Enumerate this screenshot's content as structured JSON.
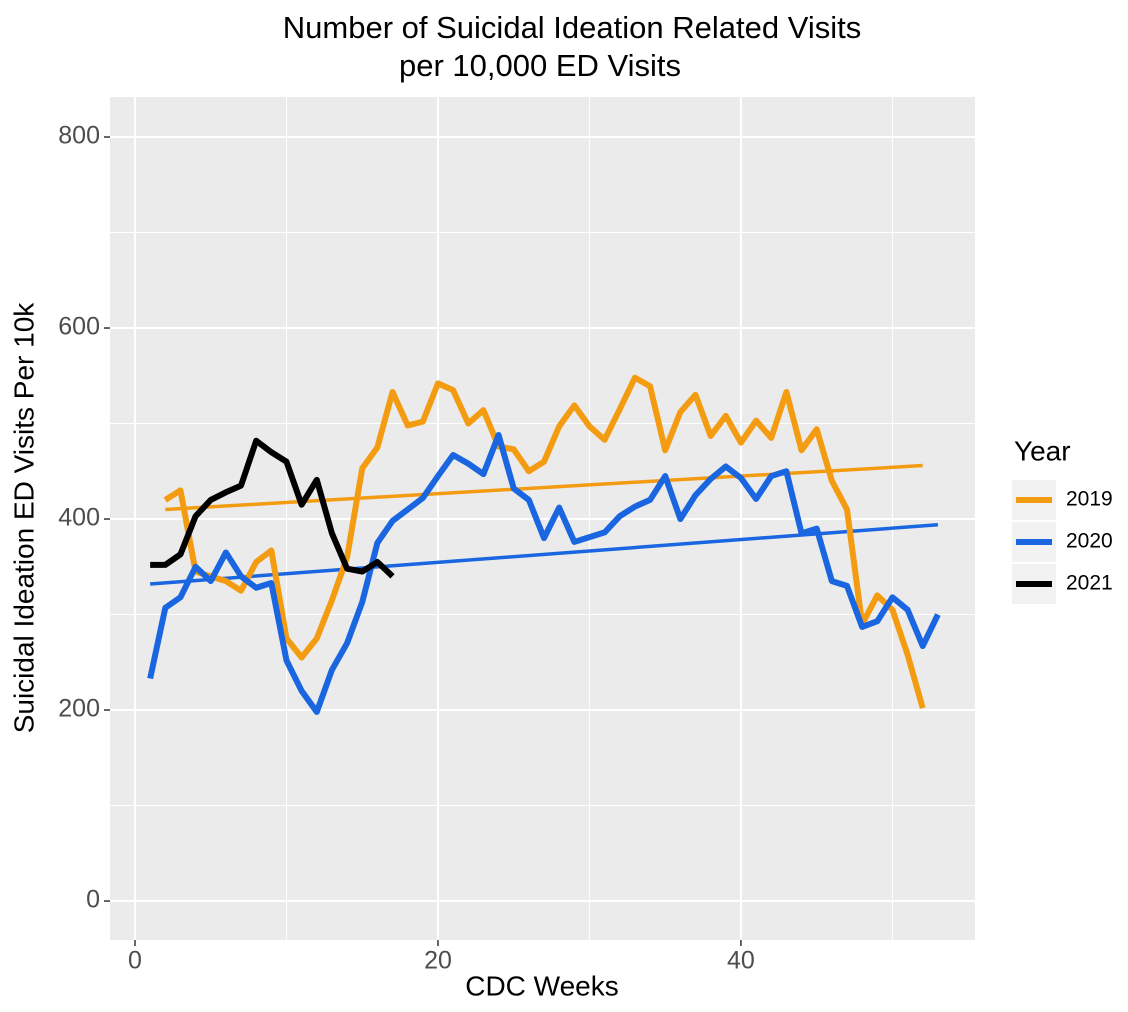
{
  "chart_data": {
    "type": "line",
    "title": [
      "Number of Suicidal Ideation Related Visits",
      "per 10,000 ED Visits"
    ],
    "x_label": "CDC Weeks",
    "y_label": "Suicidal Ideation ED Visits Per 10k",
    "legend_title": "Year",
    "legend": "right",
    "grid": true,
    "xlim": [
      -1.65,
      55.45
    ],
    "ylim": [
      -40.8,
      841.9
    ],
    "xticks": [
      0,
      20,
      40
    ],
    "yticks": [
      0,
      200,
      400,
      600,
      800
    ],
    "xminor": [
      10,
      30,
      50
    ],
    "yminor": [
      100,
      300,
      500,
      700
    ],
    "series": [
      {
        "name": "2019",
        "color": "#f39c12",
        "x": [
          2,
          3,
          4,
          5,
          6,
          7,
          8,
          9,
          10,
          11,
          12,
          13,
          14,
          15,
          16,
          17,
          18,
          19,
          20,
          21,
          22,
          23,
          24,
          25,
          26,
          27,
          28,
          29,
          30,
          31,
          32,
          33,
          34,
          35,
          36,
          37,
          38,
          39,
          40,
          41,
          42,
          43,
          44,
          45,
          46,
          47,
          48,
          49,
          50,
          51,
          52
        ],
        "values": [
          420,
          430,
          345,
          340,
          335,
          325,
          355,
          367,
          275,
          255,
          275,
          315,
          360,
          453,
          475,
          533,
          498,
          502,
          542,
          535,
          500,
          514,
          476,
          473,
          450,
          460,
          497,
          519,
          497,
          483,
          515,
          548,
          539,
          472,
          512,
          530,
          487,
          508,
          480,
          503,
          485,
          533,
          472,
          494,
          440,
          410,
          290,
          320,
          305,
          258,
          202
        ],
        "trend": {
          "x": [
            2,
            52
          ],
          "values": [
            410,
            456
          ]
        }
      },
      {
        "name": "2020",
        "color": "#1a66e0",
        "x": [
          1,
          2,
          3,
          4,
          5,
          6,
          7,
          8,
          9,
          10,
          11,
          12,
          13,
          14,
          15,
          16,
          17,
          18,
          19,
          20,
          21,
          22,
          23,
          24,
          25,
          26,
          27,
          28,
          29,
          30,
          31,
          32,
          33,
          34,
          35,
          36,
          37,
          38,
          39,
          40,
          41,
          42,
          43,
          44,
          45,
          46,
          47,
          48,
          49,
          50,
          51,
          52,
          53
        ],
        "values": [
          233,
          307,
          318,
          350,
          335,
          365,
          340,
          328,
          333,
          252,
          220,
          198,
          242,
          270,
          313,
          375,
          398,
          410,
          422,
          445,
          467,
          458,
          447,
          488,
          432,
          420,
          380,
          412,
          376,
          381,
          386,
          403,
          413,
          420,
          445,
          400,
          425,
          442,
          455,
          443,
          421,
          445,
          450,
          385,
          390,
          335,
          330,
          287,
          293,
          318,
          305,
          267,
          300
        ],
        "trend": {
          "x": [
            1,
            53
          ],
          "values": [
            332,
            394
          ]
        }
      },
      {
        "name": "2021",
        "color": "#000000",
        "x": [
          1,
          2,
          3,
          4,
          5,
          6,
          7,
          8,
          9,
          10,
          11,
          12,
          13,
          14,
          15,
          16,
          17
        ],
        "values": [
          352,
          352,
          363,
          403,
          420,
          428,
          435,
          482,
          470,
          460,
          415,
          441,
          385,
          348,
          345,
          355,
          340
        ]
      }
    ]
  }
}
